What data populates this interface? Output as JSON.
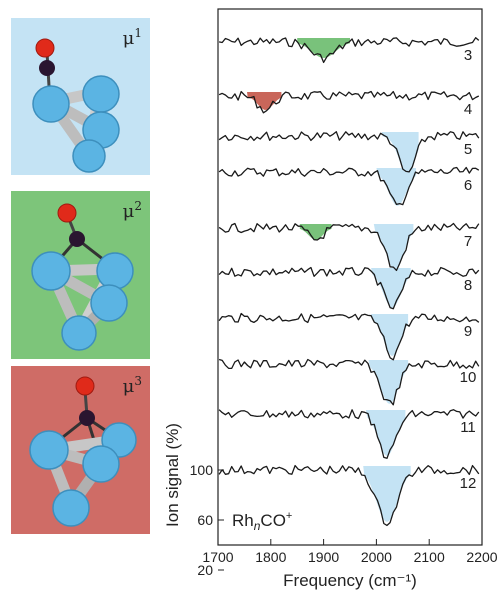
{
  "panels": [
    {
      "label_symbol": "μ",
      "label_index": "1",
      "color": "#c4e3f4"
    },
    {
      "label_symbol": "μ",
      "label_index": "2",
      "color": "#7dc57a"
    },
    {
      "label_symbol": "μ",
      "label_index": "3",
      "color": "#cf6c66"
    }
  ],
  "chart_data": {
    "type": "line",
    "xlabel": "Frequency (cm⁻¹)",
    "ylabel": "Ion signal (%)",
    "annotation": {
      "base": "Rh",
      "sub": "n",
      "tail": "CO",
      "sup": "+"
    },
    "xlim": [
      1700,
      2200
    ],
    "xticks": [
      1700,
      1800,
      1900,
      2000,
      2100,
      2200
    ],
    "yticks": [
      20,
      60,
      100
    ],
    "series": [
      {
        "label": "3",
        "center": 1900,
        "depth": 16,
        "fill": "#79c27b",
        "band": [
          1850,
          1950
        ]
      },
      {
        "label": "4",
        "center": 1790,
        "depth": 14,
        "fill": "#c9665a",
        "band": [
          1755,
          1820
        ]
      },
      {
        "label": "5",
        "center": 2058,
        "depth": 38,
        "fill": "#c4e3f4",
        "band": [
          2010,
          2080
        ]
      },
      {
        "label": "6",
        "center": 2040,
        "depth": 34,
        "fill": "#c4e3f4",
        "band": [
          2000,
          2075
        ]
      },
      {
        "label": "7",
        "center": 2035,
        "depth": 42,
        "fill": "#c4e3f4",
        "band": [
          1995,
          2070
        ],
        "extra": {
          "center": 1885,
          "depth": 12,
          "fill": "#79c27b",
          "band": [
            1855,
            1915
          ]
        }
      },
      {
        "label": "8",
        "center": 2030,
        "depth": 36,
        "fill": "#c4e3f4",
        "band": [
          1990,
          2065
        ]
      },
      {
        "label": "9",
        "center": 2030,
        "depth": 38,
        "fill": "#c4e3f4",
        "band": [
          1990,
          2060
        ]
      },
      {
        "label": "10",
        "center": 2025,
        "depth": 40,
        "fill": "#c4e3f4",
        "band": [
          1985,
          2060
        ]
      },
      {
        "label": "11",
        "center": 2020,
        "depth": 42,
        "fill": "#c4e3f4",
        "band": [
          1980,
          2055
        ]
      },
      {
        "label": "12",
        "center": 2020,
        "depth": 52,
        "fill": "#c4e3f4",
        "band": [
          1975,
          2065
        ]
      }
    ]
  }
}
